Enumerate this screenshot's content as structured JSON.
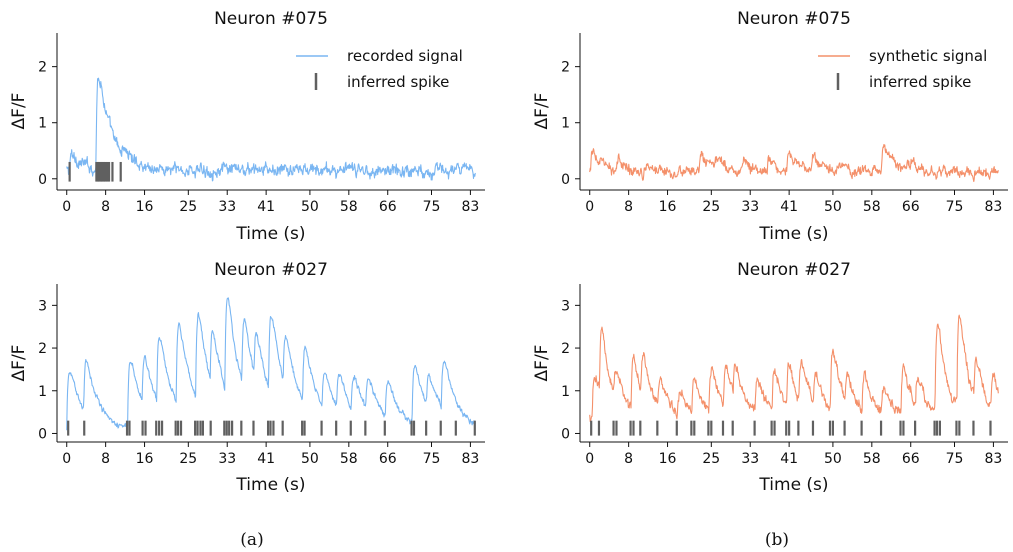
{
  "figure": {
    "captions": [
      "(a)",
      "(b)"
    ]
  },
  "chart_data": [
    {
      "type": "line",
      "title": "Neuron #075",
      "xlabel": "Time (s)",
      "ylabel": "ΔF/F",
      "xticks": [
        0,
        8,
        16,
        25,
        33,
        41,
        50,
        58,
        66,
        75,
        83
      ],
      "yticks": [
        0,
        1,
        2
      ],
      "xlim": [
        -2,
        86
      ],
      "ylim": [
        -0.2,
        2.6
      ],
      "legend": "top-right",
      "series": [
        {
          "name": "recorded signal",
          "color": "#7ab6f2",
          "baseline": 0.15,
          "noise": 0.11,
          "events": [
            [
              0.5,
              0.35
            ],
            [
              6.0,
              2.3
            ],
            [
              11.2,
              0.2
            ]
          ],
          "tau": 2.6
        }
      ],
      "spikes": {
        "name": "inferred spike",
        "color": "#606060",
        "times": [
          0.6,
          6.1,
          6.4,
          6.7,
          7.0,
          7.3,
          7.6,
          7.9,
          8.3,
          8.7,
          9.4,
          11.1
        ]
      }
    },
    {
      "type": "line",
      "title": "Neuron #075",
      "xlabel": "Time (s)",
      "ylabel": "ΔF/F",
      "xticks": [
        0,
        8,
        16,
        25,
        33,
        41,
        50,
        58,
        66,
        75,
        83
      ],
      "yticks": [
        0,
        1,
        2
      ],
      "xlim": [
        -2,
        86
      ],
      "ylim": [
        -0.2,
        2.6
      ],
      "legend": "top-right",
      "series": [
        {
          "name": "synthetic signal",
          "color": "#f4906a",
          "baseline": 0.12,
          "noise": 0.09,
          "events": [
            [
              0.2,
              0.55
            ],
            [
              5.5,
              0.25
            ],
            [
              11.5,
              0.25
            ],
            [
              22.5,
              0.35
            ],
            [
              25.5,
              0.3
            ],
            [
              31.0,
              0.3
            ],
            [
              36.5,
              0.3
            ],
            [
              40.5,
              0.45
            ],
            [
              45.5,
              0.3
            ],
            [
              51.0,
              0.2
            ],
            [
              60.0,
              0.75
            ],
            [
              65.0,
              0.2
            ]
          ],
          "tau": 1.8
        }
      ],
      "spikes": {
        "name": "inferred spike",
        "color": "#606060",
        "times": []
      }
    },
    {
      "type": "line",
      "title": "Neuron #027",
      "xlabel": "Time (s)",
      "ylabel": "ΔF/F",
      "xticks": [
        0,
        8,
        16,
        25,
        33,
        41,
        50,
        58,
        66,
        75,
        83
      ],
      "yticks": [
        0,
        1,
        2,
        3
      ],
      "xlim": [
        -2,
        86
      ],
      "ylim": [
        -0.2,
        3.5
      ],
      "legend": "none",
      "series": [
        {
          "name": "recorded signal",
          "color": "#7ab6f2",
          "baseline": 0.05,
          "noise": 0.07,
          "events": [
            [
              0.0,
              1.9
            ],
            [
              3.5,
              1.6
            ],
            [
              12.5,
              2.1
            ],
            [
              15.5,
              1.5
            ],
            [
              18.5,
              2.2
            ],
            [
              22.5,
              2.7
            ],
            [
              26.5,
              2.8
            ],
            [
              29.5,
              1.8
            ],
            [
              32.5,
              3.1
            ],
            [
              36.0,
              2.2
            ],
            [
              38.5,
              1.6
            ],
            [
              41.5,
              2.6
            ],
            [
              44.5,
              1.7
            ],
            [
              48.5,
              1.9
            ],
            [
              52.5,
              1.2
            ],
            [
              55.5,
              1.1
            ],
            [
              58.5,
              1.1
            ],
            [
              61.5,
              1.0
            ],
            [
              65.5,
              1.1
            ],
            [
              71.0,
              1.8
            ],
            [
              74.0,
              1.0
            ],
            [
              77.0,
              1.6
            ],
            [
              84.0,
              1.4
            ]
          ],
          "tau": 2.8
        }
      ],
      "spikes": {
        "name": "inferred spike",
        "color": "#606060",
        "times": [
          0.3,
          3.6,
          12.4,
          12.9,
          15.6,
          16.2,
          18.4,
          19.0,
          19.6,
          22.4,
          22.9,
          23.5,
          26.4,
          26.9,
          27.5,
          28.0,
          29.6,
          32.4,
          32.9,
          33.4,
          34.0,
          35.9,
          38.4,
          41.4,
          41.9,
          42.5,
          44.4,
          48.4,
          48.9,
          52.4,
          55.4,
          58.4,
          61.4,
          65.4,
          70.9,
          71.4,
          73.9,
          76.9,
          80.0,
          83.9
        ]
      }
    },
    {
      "type": "line",
      "title": "Neuron #027",
      "xlabel": "Time (s)",
      "ylabel": "ΔF/F",
      "xticks": [
        0,
        8,
        16,
        25,
        33,
        41,
        50,
        58,
        66,
        75,
        83
      ],
      "yticks": [
        0,
        1,
        2,
        3
      ],
      "xlim": [
        -2,
        86
      ],
      "ylim": [
        -0.2,
        3.5
      ],
      "legend": "none",
      "series": [
        {
          "name": "synthetic signal",
          "color": "#f4906a",
          "baseline": 0.35,
          "noise": 0.12,
          "events": [
            [
              0.5,
              1.4
            ],
            [
              2.0,
              2.4
            ],
            [
              5.0,
              1.0
            ],
            [
              8.5,
              1.8
            ],
            [
              10.5,
              1.4
            ],
            [
              14.0,
              0.9
            ],
            [
              18.0,
              0.8
            ],
            [
              21.0,
              1.2
            ],
            [
              24.5,
              1.6
            ],
            [
              27.5,
              1.4
            ],
            [
              29.5,
              1.1
            ],
            [
              34.0,
              1.2
            ],
            [
              37.5,
              1.4
            ],
            [
              40.5,
              1.6
            ],
            [
              43.0,
              1.4
            ],
            [
              46.0,
              1.2
            ],
            [
              49.5,
              2.1
            ],
            [
              52.5,
              1.0
            ],
            [
              56.0,
              1.3
            ],
            [
              60.0,
              0.8
            ],
            [
              64.0,
              1.6
            ],
            [
              67.0,
              1.0
            ],
            [
              71.0,
              3.1
            ],
            [
              75.5,
              3.2
            ],
            [
              79.0,
              1.4
            ],
            [
              82.5,
              1.2
            ]
          ],
          "tau": 1.9
        }
      ],
      "spikes": {
        "name": "inferred spike",
        "color": "#606060",
        "times": [
          0.3,
          1.9,
          4.9,
          5.5,
          8.4,
          9.0,
          10.4,
          13.9,
          17.9,
          20.9,
          21.5,
          24.4,
          25.0,
          27.4,
          29.4,
          33.9,
          37.4,
          38.0,
          40.4,
          41.0,
          42.9,
          45.9,
          49.4,
          50.0,
          52.4,
          55.9,
          59.9,
          63.9,
          64.5,
          66.9,
          70.9,
          71.4,
          72.0,
          75.4,
          76.0,
          78.9,
          82.4
        ]
      }
    }
  ]
}
